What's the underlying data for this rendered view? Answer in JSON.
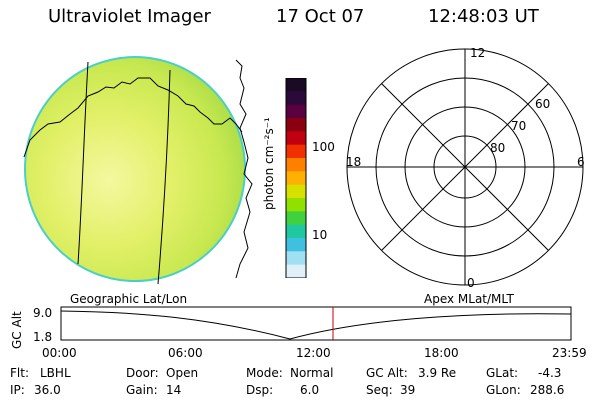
{
  "header": {
    "title": "Ultraviolet Imager",
    "date": "17 Oct 07",
    "time": "12:48:03 UT"
  },
  "colorbar": {
    "unit_label": "photon cm⁻²s⁻¹",
    "ticks": [
      {
        "label": "100",
        "value": 100
      },
      {
        "label": "10",
        "value": 10
      }
    ],
    "colors": [
      "#1a0a24",
      "#2b0a3a",
      "#5a0040",
      "#8a0010",
      "#c00010",
      "#f03000",
      "#ff8000",
      "#ffb000",
      "#d8e000",
      "#90e000",
      "#40d040",
      "#20c8a0",
      "#40c0e0",
      "#a0e0f0",
      "#e0f0f8"
    ]
  },
  "globe": {
    "fill_color": "#dff060",
    "edge_color": "#40d0d0"
  },
  "polar_plot": {
    "mlt_labels": [
      {
        "label": "12",
        "pos": "top"
      },
      {
        "label": "18",
        "pos": "left"
      },
      {
        "label": "6",
        "pos": "right"
      },
      {
        "label": "0",
        "pos": "bottom"
      }
    ],
    "lat_labels": [
      "60",
      "70",
      "80"
    ]
  },
  "altitude_plot": {
    "left_label": "Geographic Lat/Lon",
    "right_label": "Apex MLat/MLT",
    "axis_label": "GC Alt",
    "y_ticks": [
      "9.0",
      "1.8"
    ],
    "x_ticks": [
      "00:00",
      "06:00",
      "12:00",
      "18:00",
      "23:59"
    ],
    "current_time_hours": 12.8,
    "marker_color": "#cc0000"
  },
  "status": {
    "row1": [
      {
        "key": "Flt:",
        "value": "LBHL"
      },
      {
        "key": "Door:",
        "value": "Open"
      },
      {
        "key": "Mode:",
        "value": "Normal"
      },
      {
        "key": "GC Alt:",
        "value": "3.9 Re"
      },
      {
        "key": "GLat:",
        "value": "-4.3"
      }
    ],
    "row2": [
      {
        "key": "IP:",
        "value": "36.0"
      },
      {
        "key": "Gain:",
        "value": "14"
      },
      {
        "key": "Dsp:",
        "value": "6.0"
      },
      {
        "key": "Seq:",
        "value": "39"
      },
      {
        "key": "GLon:",
        "value": "288.6"
      }
    ]
  }
}
